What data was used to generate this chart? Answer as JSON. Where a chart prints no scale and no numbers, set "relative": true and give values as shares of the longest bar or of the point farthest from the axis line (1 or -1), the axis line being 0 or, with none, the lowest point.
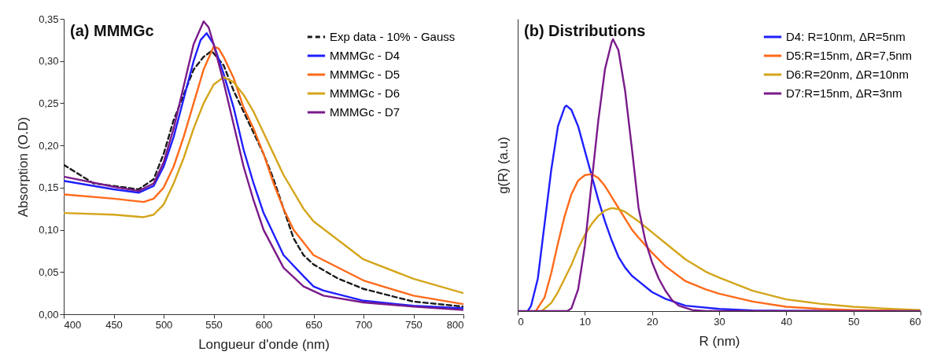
{
  "chart_data": [
    {
      "type": "line",
      "title": "(a) MMMGc",
      "xlabel": "Longueur d'onde (nm)",
      "ylabel": "Absorption (O.D)",
      "legend": "top right",
      "grid": false,
      "xlim": [
        400,
        800
      ],
      "xticks": [
        400,
        450,
        500,
        550,
        600,
        650,
        700,
        750,
        800
      ],
      "ylim": [
        0,
        0.35
      ],
      "yticks": [
        {
          "value": 0,
          "label": "0,00"
        },
        {
          "value": 0.05,
          "label": "0,05"
        },
        {
          "value": 0.1,
          "label": "0,10"
        },
        {
          "value": 0.15,
          "label": "0,15"
        },
        {
          "value": 0.2,
          "label": "0,20"
        },
        {
          "value": 0.25,
          "label": "0,25"
        },
        {
          "value": 0.3,
          "label": "0,30"
        },
        {
          "value": 0.35,
          "label": "0,35"
        }
      ],
      "series": [
        {
          "name": "Exp data - 10% - Gauss",
          "color": "#1a1a1a",
          "line_style": "dashed",
          "x": [
            400,
            430,
            450,
            475,
            490,
            500,
            510,
            520,
            530,
            540,
            548,
            560,
            570,
            580,
            590,
            600,
            610,
            620,
            630,
            640,
            650,
            675,
            700,
            750,
            800
          ],
          "values": [
            0.177,
            0.155,
            0.152,
            0.148,
            0.16,
            0.19,
            0.23,
            0.26,
            0.29,
            0.305,
            0.312,
            0.295,
            0.265,
            0.24,
            0.215,
            0.19,
            0.16,
            0.125,
            0.09,
            0.07,
            0.059,
            0.042,
            0.03,
            0.015,
            0.009
          ]
        },
        {
          "name": "MMMGc - D4",
          "color": "#1f1fff",
          "x": [
            400,
            450,
            475,
            490,
            500,
            510,
            520,
            530,
            537,
            543,
            550,
            560,
            570,
            580,
            590,
            600,
            620,
            640,
            650,
            660,
            700,
            750,
            800
          ],
          "values": [
            0.158,
            0.148,
            0.144,
            0.152,
            0.175,
            0.21,
            0.255,
            0.3,
            0.325,
            0.333,
            0.32,
            0.285,
            0.245,
            0.195,
            0.155,
            0.12,
            0.07,
            0.045,
            0.033,
            0.028,
            0.016,
            0.01,
            0.007
          ]
        },
        {
          "name": "MMMGc - D5",
          "color": "#ff6a1a",
          "x": [
            400,
            450,
            480,
            490,
            500,
            510,
            520,
            530,
            540,
            550,
            555,
            560,
            570,
            580,
            590,
            600,
            610,
            620,
            630,
            650,
            700,
            750,
            800
          ],
          "values": [
            0.142,
            0.137,
            0.133,
            0.137,
            0.15,
            0.175,
            0.21,
            0.25,
            0.29,
            0.317,
            0.315,
            0.305,
            0.28,
            0.245,
            0.22,
            0.19,
            0.155,
            0.125,
            0.1,
            0.07,
            0.04,
            0.022,
            0.012
          ]
        },
        {
          "name": "MMMGc - D6",
          "color": "#d4a51a",
          "x": [
            400,
            450,
            480,
            490,
            500,
            510,
            520,
            530,
            540,
            550,
            560,
            570,
            580,
            590,
            600,
            610,
            620,
            640,
            650,
            700,
            750,
            800
          ],
          "values": [
            0.12,
            0.118,
            0.115,
            0.118,
            0.13,
            0.155,
            0.185,
            0.22,
            0.25,
            0.272,
            0.281,
            0.275,
            0.26,
            0.24,
            0.215,
            0.19,
            0.165,
            0.125,
            0.11,
            0.065,
            0.042,
            0.025
          ]
        },
        {
          "name": "MMMGc - D7",
          "color": "#7a1a8a",
          "x": [
            400,
            450,
            475,
            490,
            500,
            510,
            520,
            530,
            540,
            545,
            550,
            560,
            570,
            580,
            590,
            600,
            620,
            640,
            660,
            700,
            750,
            800
          ],
          "values": [
            0.163,
            0.151,
            0.146,
            0.155,
            0.18,
            0.22,
            0.27,
            0.32,
            0.347,
            0.34,
            0.32,
            0.275,
            0.225,
            0.175,
            0.135,
            0.1,
            0.055,
            0.033,
            0.022,
            0.014,
            0.009,
            0.005
          ]
        }
      ]
    },
    {
      "type": "line",
      "title": "(b) Distributions",
      "xlabel": "R (nm)",
      "ylabel": "g(R) (a.u)",
      "legend": "top right",
      "grid": false,
      "relative": true,
      "tick_labels": "x",
      "xlim": [
        0,
        60
      ],
      "xticks": [
        0,
        10,
        20,
        30,
        40,
        50,
        60
      ],
      "series": [
        {
          "name": "D4: R=10nm, ΔR=5nm",
          "color": "#1f1fff",
          "x": [
            1.5,
            2,
            3,
            4,
            5,
            6,
            7,
            7.25,
            8,
            9,
            10,
            11,
            12,
            13,
            14,
            15,
            16,
            17,
            18,
            20,
            22,
            25,
            30,
            35,
            40,
            60
          ],
          "values": [
            0,
            0.02,
            0.12,
            0.32,
            0.52,
            0.68,
            0.75,
            0.756,
            0.74,
            0.68,
            0.59,
            0.5,
            0.41,
            0.33,
            0.26,
            0.2,
            0.16,
            0.13,
            0.11,
            0.07,
            0.045,
            0.02,
            0.008,
            0.002,
            0.001,
            0
          ]
        },
        {
          "name": "D5:R=15nm, ΔR=7,5nm",
          "color": "#ff6a1a",
          "x": [
            2.7,
            4,
            5,
            6,
            7,
            8,
            9,
            10,
            11,
            12,
            13,
            14,
            15,
            16,
            17,
            18,
            20,
            22,
            25,
            28,
            30,
            35,
            40,
            45,
            50,
            60
          ],
          "values": [
            0,
            0.05,
            0.14,
            0.25,
            0.35,
            0.43,
            0.48,
            0.5,
            0.504,
            0.49,
            0.46,
            0.42,
            0.38,
            0.34,
            0.3,
            0.27,
            0.215,
            0.165,
            0.11,
            0.08,
            0.064,
            0.035,
            0.016,
            0.008,
            0.004,
            0
          ]
        },
        {
          "name": "D6:R=20nm, ΔR=10nm",
          "color": "#d4a51a",
          "x": [
            3.6,
            5,
            6,
            7,
            8,
            9,
            10,
            11,
            12,
            13,
            14,
            15,
            16,
            18,
            20,
            22,
            25,
            28,
            30,
            35,
            40,
            45,
            50,
            55,
            60
          ],
          "values": [
            0,
            0.03,
            0.07,
            0.12,
            0.17,
            0.23,
            0.28,
            0.32,
            0.35,
            0.37,
            0.379,
            0.375,
            0.365,
            0.33,
            0.29,
            0.25,
            0.19,
            0.145,
            0.123,
            0.075,
            0.043,
            0.027,
            0.016,
            0.009,
            0.004
          ]
        },
        {
          "name": "D7:R=15nm, ΔR=3nm",
          "color": "#7a1a8a",
          "x": [
            0,
            7.4,
            8,
            9,
            10,
            11,
            12,
            13,
            14,
            14.2,
            15,
            16,
            17,
            18,
            19,
            20,
            21,
            22,
            23,
            24,
            26,
            28,
            60
          ],
          "values": [
            0,
            0,
            0.01,
            0.08,
            0.24,
            0.47,
            0.7,
            0.89,
            0.99,
            1,
            0.96,
            0.81,
            0.6,
            0.38,
            0.26,
            0.18,
            0.12,
            0.075,
            0.04,
            0.02,
            0.004,
            0,
            0
          ]
        }
      ]
    }
  ]
}
